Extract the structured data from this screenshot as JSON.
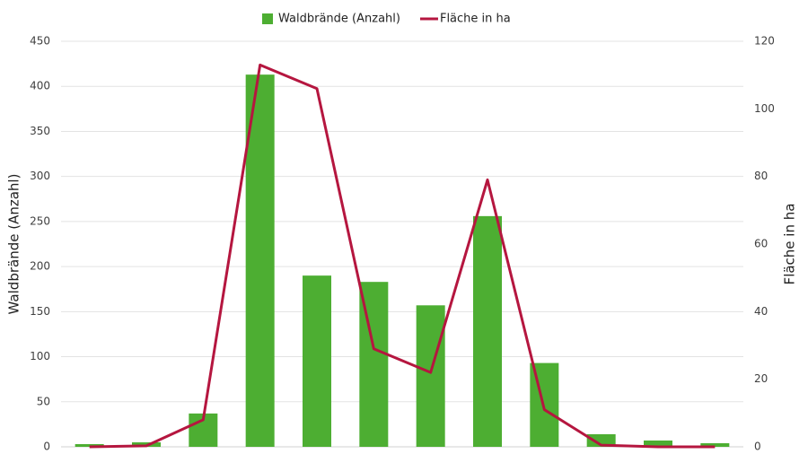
{
  "chart_data": {
    "type": "bar",
    "categories": [
      null,
      null,
      null,
      null,
      null,
      null,
      null,
      null,
      null,
      null,
      null,
      null
    ],
    "series": [
      {
        "name": "Waldbrände (Anzahl)",
        "type": "bar",
        "color": "#4dae32",
        "values": [
          3,
          5,
          37,
          413,
          190,
          183,
          157,
          256,
          93,
          14,
          7,
          4
        ]
      },
      {
        "name": "Fläche in ha",
        "type": "line",
        "axis": "y2",
        "color": "#b5163f",
        "values": [
          0,
          0.3,
          8,
          113,
          106,
          29,
          22,
          79,
          11,
          0.5,
          0,
          0
        ]
      }
    ],
    "y_label": "Waldbrände (Anzahl)",
    "y2_label": "Fläche in ha",
    "ylim": [
      0,
      450
    ],
    "yticks": [
      0,
      50,
      100,
      150,
      200,
      250,
      300,
      350,
      400,
      450
    ],
    "y2lim": [
      0,
      120
    ],
    "y2ticks": [
      0,
      20,
      40,
      60,
      80,
      100,
      120
    ],
    "grid": true,
    "legend": "top"
  }
}
